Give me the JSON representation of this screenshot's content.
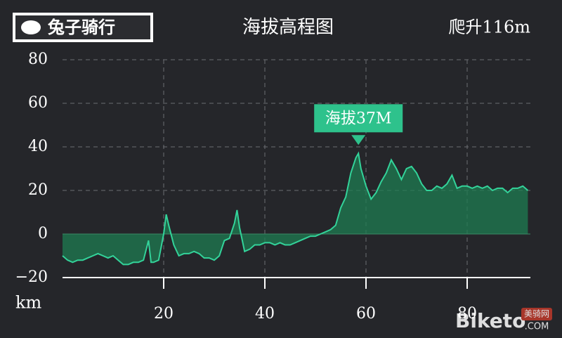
{
  "logo": "兔子骑行",
  "chart_data": {
    "type": "area",
    "title": "海拔高程图",
    "subtitle": "爬升116m",
    "x_label": "km",
    "color": "#33d39a",
    "fill": "#1d7c52",
    "grid": true,
    "xlim": [
      0,
      92.5
    ],
    "ylim": [
      -20,
      80
    ],
    "xticks": [
      20,
      40,
      60,
      80
    ],
    "yticks": [
      {
        "value": -20,
        "label": "−20"
      },
      0,
      20,
      40,
      60,
      80
    ],
    "annotation": {
      "text": "海拔37M",
      "x": 58.5,
      "y": 37
    },
    "x": [
      0,
      1,
      2,
      3,
      4,
      5,
      6,
      7,
      8,
      9,
      10,
      11,
      12,
      13,
      14,
      15,
      16,
      17,
      17.5,
      18,
      19,
      20,
      20.5,
      21,
      22,
      23,
      24,
      25,
      26,
      27,
      28,
      29,
      30,
      31,
      32,
      33,
      34,
      34.5,
      35,
      36,
      37,
      38,
      39,
      40,
      41,
      42,
      43,
      44,
      45,
      46,
      47,
      48,
      49,
      50,
      51,
      52,
      53,
      54,
      55,
      56,
      57,
      58,
      58.5,
      59,
      60,
      61,
      62,
      63,
      64,
      65,
      66,
      67,
      68,
      69,
      70,
      71,
      72,
      73,
      74,
      75,
      76,
      77,
      78,
      79,
      80,
      81,
      82,
      83,
      84,
      85,
      86,
      87,
      88,
      89,
      90,
      91,
      92
    ],
    "values": [
      -10,
      -12,
      -13,
      -12,
      -12,
      -11,
      -10,
      -9,
      -10,
      -11,
      -10,
      -12,
      -14,
      -14,
      -13,
      -13,
      -12,
      -3,
      -13,
      -13,
      -12,
      0,
      9,
      4,
      -5,
      -10,
      -9,
      -9,
      -8,
      -9,
      -11,
      -11,
      -12,
      -10,
      -3,
      -2,
      5,
      11,
      3,
      -8,
      -7,
      -5,
      -5,
      -4,
      -4,
      -5,
      -4,
      -5,
      -5,
      -4,
      -3,
      -2,
      -1,
      -1,
      0,
      1,
      2,
      4,
      12,
      17,
      28,
      35,
      37,
      30,
      22,
      16,
      19,
      24,
      28,
      34,
      30,
      25,
      30,
      31,
      28,
      23,
      20,
      20,
      22,
      21,
      23,
      27,
      21,
      22,
      22,
      21,
      22,
      21,
      22,
      20,
      21,
      21,
      19,
      21,
      21,
      22,
      20
    ]
  },
  "watermark": {
    "text": "Biketo",
    "badge": "美骑网",
    "suffix": ".COM"
  }
}
